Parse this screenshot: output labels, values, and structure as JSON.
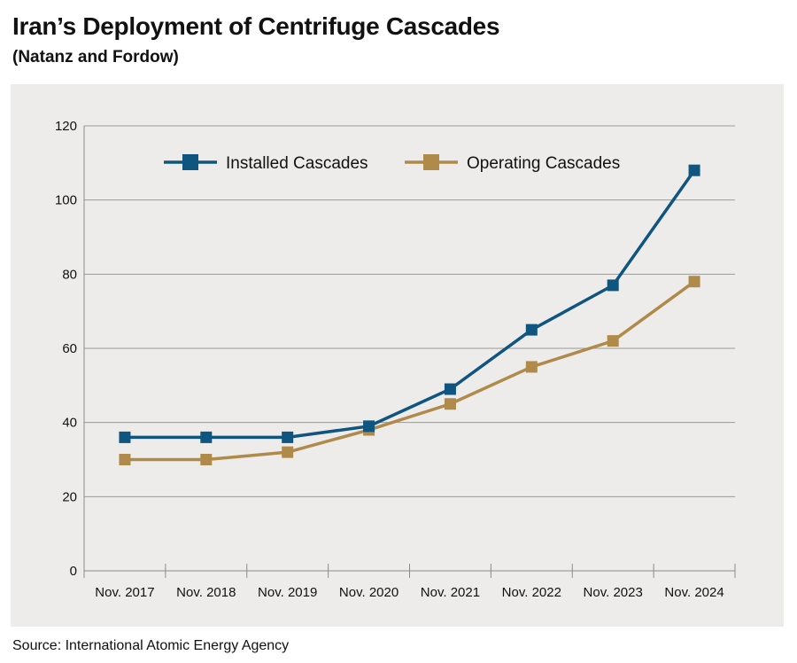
{
  "title": "Iran’s Deployment of Centrifuge Cascades",
  "subtitle": "(Natanz and Fordow)",
  "source": "Source: International Atomic Energy Agency",
  "colors": {
    "installed": "#10557f",
    "operating": "#b08a4a",
    "panel_bg": "#eeecea",
    "grid": "#9a9a9a"
  },
  "chart_data": {
    "type": "line",
    "categories": [
      "Nov. 2017",
      "Nov. 2018",
      "Nov. 2019",
      "Nov. 2020",
      "Nov. 2021",
      "Nov. 2022",
      "Nov. 2023",
      "Nov. 2024"
    ],
    "series": [
      {
        "name": "Installed Cascades",
        "values": [
          36,
          36,
          36,
          39,
          49,
          65,
          77,
          108
        ],
        "marker": "square"
      },
      {
        "name": "Operating Cascades",
        "values": [
          30,
          30,
          32,
          38,
          45,
          55,
          62,
          78
        ],
        "marker": "square"
      }
    ],
    "yticks": [
      0,
      20,
      40,
      60,
      80,
      100,
      120
    ],
    "ylim": [
      0,
      120
    ],
    "grid": true,
    "legend_position": "top"
  }
}
